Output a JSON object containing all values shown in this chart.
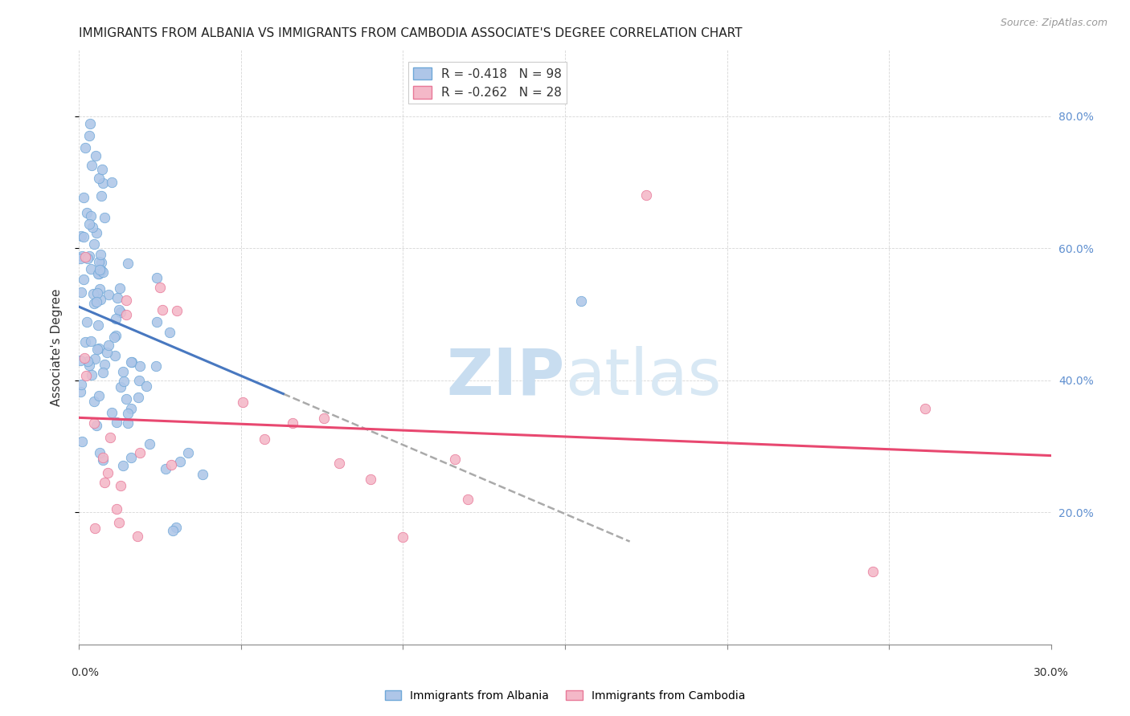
{
  "title": "IMMIGRANTS FROM ALBANIA VS IMMIGRANTS FROM CAMBODIA ASSOCIATE'S DEGREE CORRELATION CHART",
  "source_text": "Source: ZipAtlas.com",
  "ylabel": "Associate's Degree",
  "legend_blue_r": "R = -0.418",
  "legend_blue_n": "N = 98",
  "legend_pink_r": "R = -0.262",
  "legend_pink_n": "N = 28",
  "color_blue_fill": "#aec6e8",
  "color_blue_edge": "#6fa8d8",
  "color_pink_fill": "#f4b8c8",
  "color_pink_edge": "#e87898",
  "color_line_blue": "#4878c0",
  "color_line_pink": "#e84870",
  "color_dashed": "#aaaaaa",
  "color_right_axis": "#6090d0",
  "watermark_zip": "ZIP",
  "watermark_atlas": "atlas",
  "xmin": 0.0,
  "xmax": 0.3,
  "ymin": 0.0,
  "ymax": 0.9,
  "right_yticks": [
    0.2,
    0.4,
    0.6,
    0.8
  ],
  "right_yticklabels": [
    "20.0%",
    "40.0%",
    "60.0%",
    "80.0%"
  ]
}
